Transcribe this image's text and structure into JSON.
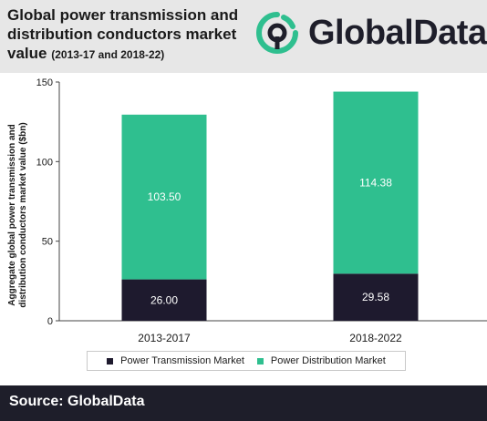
{
  "header": {
    "title": "Global power transmission and distribution conductors market value",
    "subtitle": "(2013-17 and 2018-22)",
    "logo_text": "GlobalData."
  },
  "colors": {
    "transmission": "#1e1a2e",
    "distribution": "#2fbf8f",
    "header_bg": "#e7e7e7",
    "footer_bg": "#1e1e2a"
  },
  "chart_data": {
    "type": "bar",
    "stacked": true,
    "categories": [
      "2013-2017",
      "2018-2022"
    ],
    "series": [
      {
        "name": "Power Transmission Market",
        "values": [
          26.0,
          29.58
        ],
        "labels": [
          "26.00",
          "29.58"
        ]
      },
      {
        "name": "Power Distribution Market",
        "values": [
          103.5,
          114.38
        ],
        "labels": [
          "103.50",
          "114.38"
        ]
      }
    ],
    "ylabel": "Aggregate global power transmission and distribution conductors market value ($bn)",
    "ylim": [
      0,
      150
    ],
    "yticks": [
      0,
      50,
      100,
      150
    ],
    "legend_position": "bottom",
    "grid": false
  },
  "footer": {
    "source": "Source: GlobalData"
  }
}
